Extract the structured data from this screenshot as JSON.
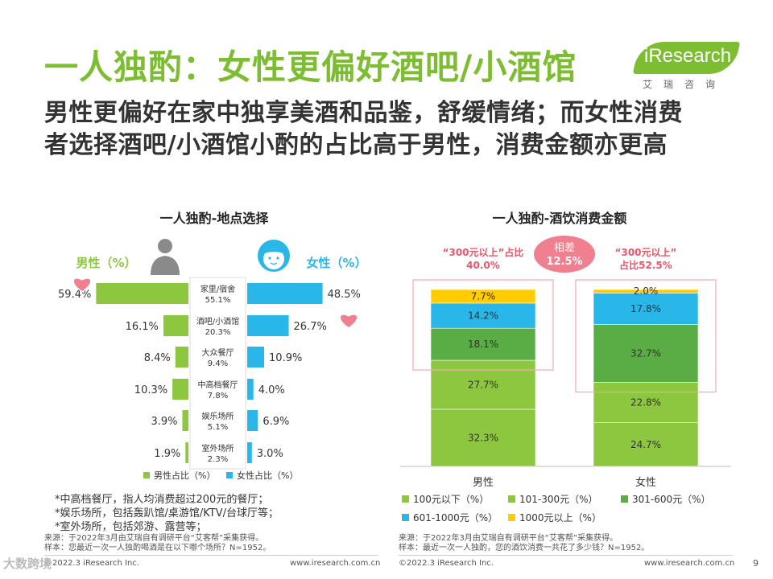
{
  "header": {
    "title": "一人独酌：女性更偏好酒吧/小酒馆",
    "subtitle_line1": "男性更偏好在家中独享美酒和品鉴，舒缓情绪；而女性消费",
    "subtitle_line2": "者选择酒吧/小酒馆小酌的占比高于男性，消费金额亦更高"
  },
  "logo": {
    "text": "iResearch",
    "cn": "艾瑞咨询"
  },
  "colors": {
    "green": "#8dc63f",
    "cyan": "#29b6e8",
    "dark_green": "#5aac44",
    "yellow": "#ffcc00",
    "pink": "#f07f8f",
    "title_green": "#7dbd32"
  },
  "chart_data": [
    {
      "type": "bar",
      "title": "一人独酌-地点选择",
      "male_label": "男性（%）",
      "female_label": "女性（%）",
      "categories": [
        {
          "name": "家里/宿舍",
          "total_label": "55.1%"
        },
        {
          "name": "酒吧/小酒馆",
          "total_label": "20.3%"
        },
        {
          "name": "大众餐厅",
          "total_label": "9.4%"
        },
        {
          "name": "中高档餐厅",
          "total_label": "7.8%"
        },
        {
          "name": "娱乐场所",
          "total_label": "5.1%"
        },
        {
          "name": "室外场所",
          "total_label": "2.3%"
        }
      ],
      "series": [
        {
          "name": "男性占比（%）",
          "values": [
            59.4,
            16.1,
            8.4,
            10.3,
            3.9,
            1.9
          ],
          "labels": [
            "59.4%",
            "16.1%",
            "8.4%",
            "10.3%",
            "3.9%",
            "1.9%"
          ]
        },
        {
          "name": "女性占比（%）",
          "values": [
            48.5,
            26.7,
            10.9,
            4.0,
            6.9,
            3.0
          ],
          "labels": [
            "48.5%",
            "26.7%",
            "10.9%",
            "4.0%",
            "6.9%",
            "3.0%"
          ]
        }
      ]
    },
    {
      "type": "stacked_bar",
      "title": "一人独酌-酒饮消费金额",
      "categories": [
        "男性",
        "女性"
      ],
      "series": [
        {
          "name": "100元以下（%）",
          "values": [
            32.3,
            24.7
          ],
          "labels": [
            "32.3%",
            "24.7%"
          ]
        },
        {
          "name": "101-300元（%）",
          "values": [
            27.7,
            22.8
          ],
          "labels": [
            "27.7%",
            "22.8%"
          ]
        },
        {
          "name": "301-600元（%）",
          "values": [
            18.1,
            32.7
          ],
          "labels": [
            "18.1%",
            "32.7%"
          ]
        },
        {
          "name": "601-1000元（%）",
          "values": [
            14.2,
            17.8
          ],
          "labels": [
            "14.2%",
            "17.8%"
          ]
        },
        {
          "name": "1000元以上（%）",
          "values": [
            7.7,
            2.0
          ],
          "labels": [
            "7.7%",
            "2.0%"
          ]
        }
      ],
      "annotations": {
        "male_line1": "“300元以上”占比",
        "male_line2": "40.0%",
        "diff_line1": "相差",
        "diff_line2": "12.5%",
        "female_line1": "“300元以上”",
        "female_line2": "占比52.5%"
      }
    }
  ],
  "notes": {
    "line1": "*中高档餐厅，指人均消费超过200元的餐厅；",
    "line2": "*娱乐场所，包括轰趴馆/桌游馆/KTV/台球厅等；",
    "line3": "*室外场所，包括郊游、露营等；"
  },
  "sources": {
    "left_line1": "来源：于2022年3月由艾瑞自有调研平台“艾客帮”采集获得。",
    "left_line2": "样本：您最近一次一人独酌喝酒是在以下哪个场所？N=1952。",
    "right_line1": "来源：于2022年3月由艾瑞自有调研平台“艾客帮”采集获得。",
    "right_line2": "样本：最近一次一人独酌，您的酒饮消费一共花了多少钱？N=1952。"
  },
  "footer": {
    "copyright": "©2022.3 iResearch Inc.",
    "website": "www.iresearch.com.cn",
    "page": "9",
    "watermark": "大数跨境"
  }
}
